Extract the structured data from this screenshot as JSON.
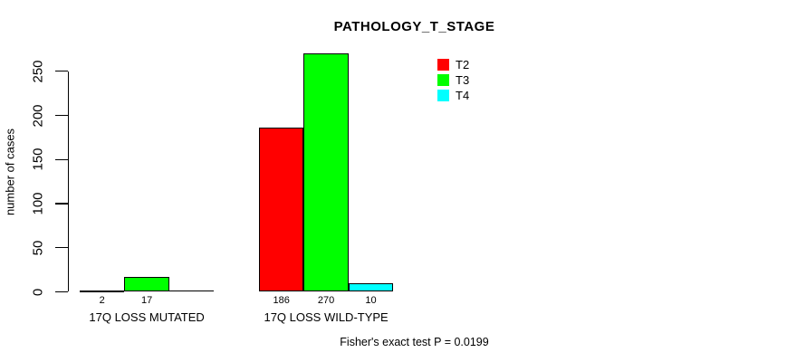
{
  "chart_data": {
    "type": "bar",
    "title": "PATHOLOGY_T_STAGE",
    "xlabel": "",
    "ylabel": "number of cases",
    "categories": [
      "17Q LOSS MUTATED",
      "17Q LOSS WILD-TYPE"
    ],
    "series": [
      {
        "name": "T2",
        "color": "#ff0000",
        "values": [
          2,
          186
        ]
      },
      {
        "name": "T3",
        "color": "#00ff00",
        "values": [
          17,
          270
        ]
      },
      {
        "name": "T4",
        "color": "#00ffff",
        "values": [
          0,
          10
        ]
      }
    ],
    "value_labels": [
      [
        "2",
        "17",
        ""
      ],
      [
        "186",
        "270",
        "10"
      ]
    ],
    "yticks": [
      0,
      50,
      100,
      150,
      200,
      250
    ],
    "ylim": [
      0,
      275
    ],
    "grid": false,
    "legend": {
      "position": "top-right",
      "entries": [
        "T2",
        "T3",
        "T4"
      ]
    },
    "annotation": "Fisher's exact test P = 0.0199"
  }
}
